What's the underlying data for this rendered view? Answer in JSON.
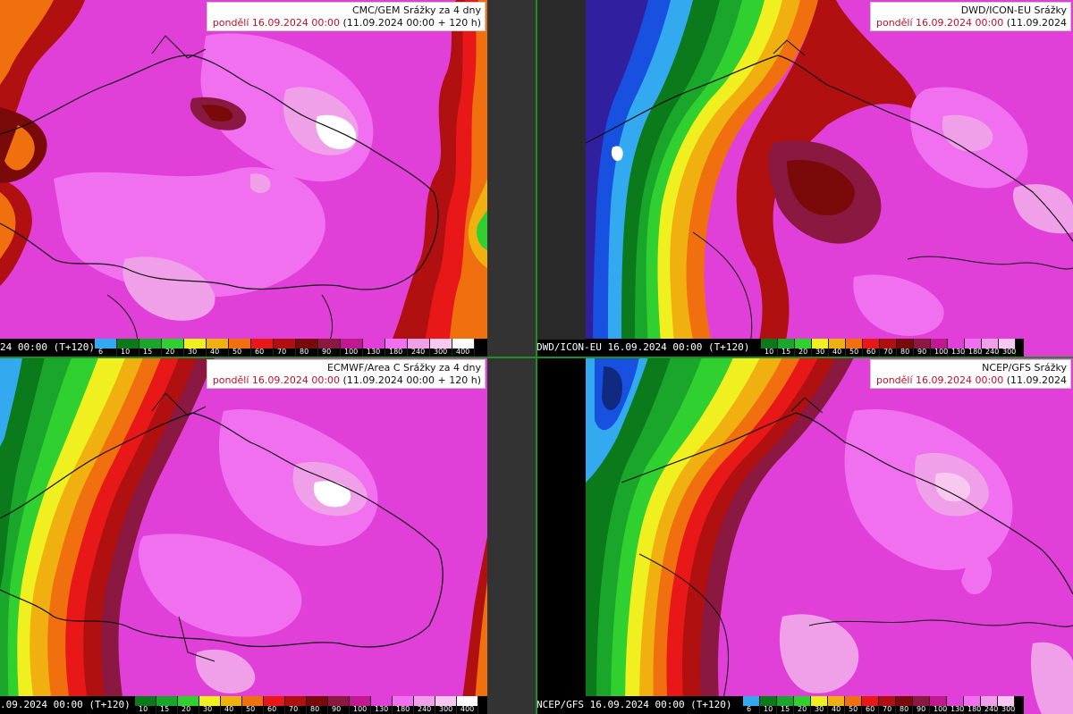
{
  "palette": {
    "6": "#33aaf0",
    "10": "#0a7a1a",
    "15": "#1aa62a",
    "20": "#2fd02f",
    "30": "#f0f020",
    "40": "#f0b010",
    "50": "#f07010",
    "60": "#e81818",
    "70": "#b01010",
    "80": "#7a0a0a",
    "90": "#8a1840",
    "100": "#c01890",
    "130": "#e040d8",
    "180": "#f070f0",
    "240": "#f0a0e8",
    "300": "#f8c8f0",
    "400": "#ffffff"
  },
  "panels": [
    {
      "id": "gem",
      "title": "CMC/GEM Srážky za 4 dny",
      "date_red": "pondělí 16.09.2024 00:00",
      "date_rest": " (11.09.2024 00:00 + 120 h)",
      "caption": "24 00:00 (T+120)",
      "ticks": [
        "6",
        "10",
        "15",
        "20",
        "30",
        "40",
        "50",
        "60",
        "70",
        "80",
        "90",
        "100",
        "130",
        "180",
        "240",
        "300",
        "400"
      ]
    },
    {
      "id": "icon",
      "title": "DWD/ICON-EU Srážky",
      "date_red": "pondělí 16.09.2024 00:00",
      "date_rest": " (11.09.2024",
      "caption": "DWD/ICON-EU 16.09.2024 00:00 (T+120)",
      "ticks": [
        "10",
        "15",
        "20",
        "30",
        "40",
        "50",
        "60",
        "70",
        "80",
        "90",
        "100",
        "130",
        "180",
        "240",
        "300"
      ]
    },
    {
      "id": "ecmwf",
      "title": "ECMWF/Area C Srážky za 4 dny",
      "date_red": "pondělí 16.09.2024 00:00",
      "date_rest": " (11.09.2024 00:00 + 120 h)",
      "caption": ".09.2024 00:00 (T+120)",
      "ticks": [
        "10",
        "15",
        "20",
        "30",
        "40",
        "50",
        "60",
        "70",
        "80",
        "90",
        "100",
        "130",
        "180",
        "240",
        "300",
        "400"
      ]
    },
    {
      "id": "gfs",
      "title": "NCEP/GFS Srážky",
      "date_red": "pondělí 16.09.2024 00:00",
      "date_rest": " (11.09.2024",
      "caption": "NCEP/GFS 16.09.2024 00:00 (T+120)",
      "ticks": [
        "6",
        "10",
        "15",
        "20",
        "30",
        "40",
        "50",
        "60",
        "70",
        "80",
        "90",
        "100",
        "130",
        "180",
        "240",
        "300"
      ]
    }
  ]
}
